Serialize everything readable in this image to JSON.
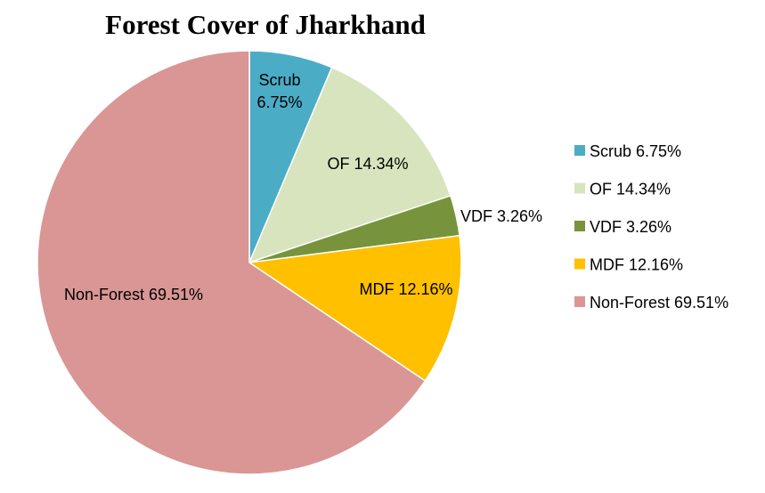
{
  "chart_data": {
    "type": "pie",
    "title": "Forest Cover of Jharkhand",
    "start_angle": "top, clockwise",
    "legend_position": "right",
    "slices": [
      {
        "label": "Scrub",
        "value": 6.75,
        "display": "Scrub 6.75%",
        "color": "#4BACC6"
      },
      {
        "label": "OF",
        "value": 14.34,
        "display": "OF 14.34%",
        "color": "#D7E4BD"
      },
      {
        "label": "VDF",
        "value": 3.26,
        "display": "VDF 3.26%",
        "color": "#77933C"
      },
      {
        "label": "MDF",
        "value": 12.16,
        "display": "MDF 12.16%",
        "color": "#FFC000"
      },
      {
        "label": "Non-Forest",
        "value": 69.51,
        "display": "Non-Forest 69.51%",
        "color": "#D99694"
      }
    ]
  }
}
